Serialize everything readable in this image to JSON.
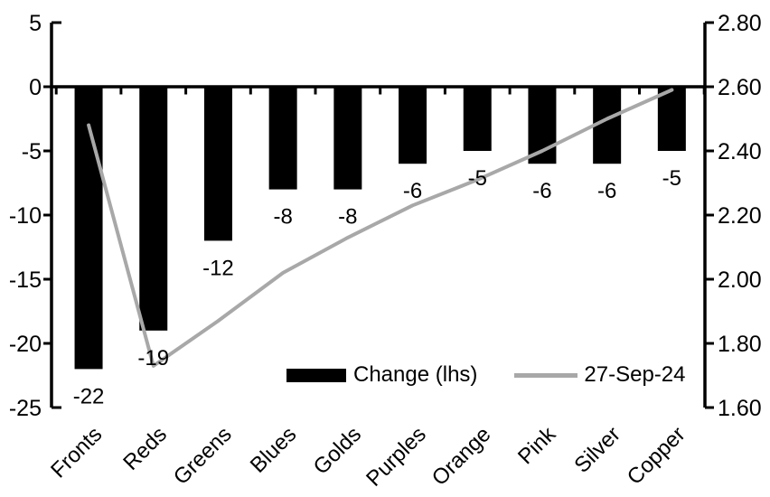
{
  "chart_data": {
    "type": "bar",
    "subtype": "bar-and-line-dual-axis",
    "categories": [
      "Fronts",
      "Reds",
      "Greens",
      "Blues",
      "Golds",
      "Purples",
      "Orange",
      "Pink",
      "Silver",
      "Copper"
    ],
    "series": [
      {
        "name": "Change (lhs)",
        "type": "bar",
        "axis": "left",
        "color": "#000000",
        "values": [
          -22,
          -19,
          -12,
          -8,
          -8,
          -6,
          -5,
          -6,
          -6,
          -5
        ],
        "data_labels": [
          "-22",
          "-19",
          "-12",
          "-8",
          "-8",
          "-6",
          "-5",
          "-6",
          "-6",
          "-5"
        ]
      },
      {
        "name": "27-Sep-24",
        "type": "line",
        "axis": "right",
        "color": "#a8a8a8",
        "values": [
          2.48,
          1.73,
          1.87,
          2.02,
          2.13,
          2.23,
          2.31,
          2.4,
          2.5,
          2.59
        ]
      }
    ],
    "left_axis": {
      "max": 5,
      "min": -25,
      "step": 5,
      "tick_labels": [
        "5",
        "0",
        "-5",
        "-10",
        "-15",
        "-20",
        "-25"
      ]
    },
    "right_axis": {
      "max": 2.8,
      "min": 1.6,
      "step": 0.2,
      "tick_labels": [
        "2.80",
        "2.60",
        "2.40",
        "2.20",
        "2.00",
        "1.80",
        "1.60"
      ]
    },
    "legend": {
      "position": "inside-bottom",
      "items": [
        {
          "label": "Change (lhs)",
          "swatch": "bar",
          "color": "#000000"
        },
        {
          "label": "27-Sep-24",
          "swatch": "line",
          "color": "#a8a8a8"
        }
      ]
    },
    "title": "",
    "grid": false,
    "background": "#ffffff",
    "text_color": "#000000"
  }
}
